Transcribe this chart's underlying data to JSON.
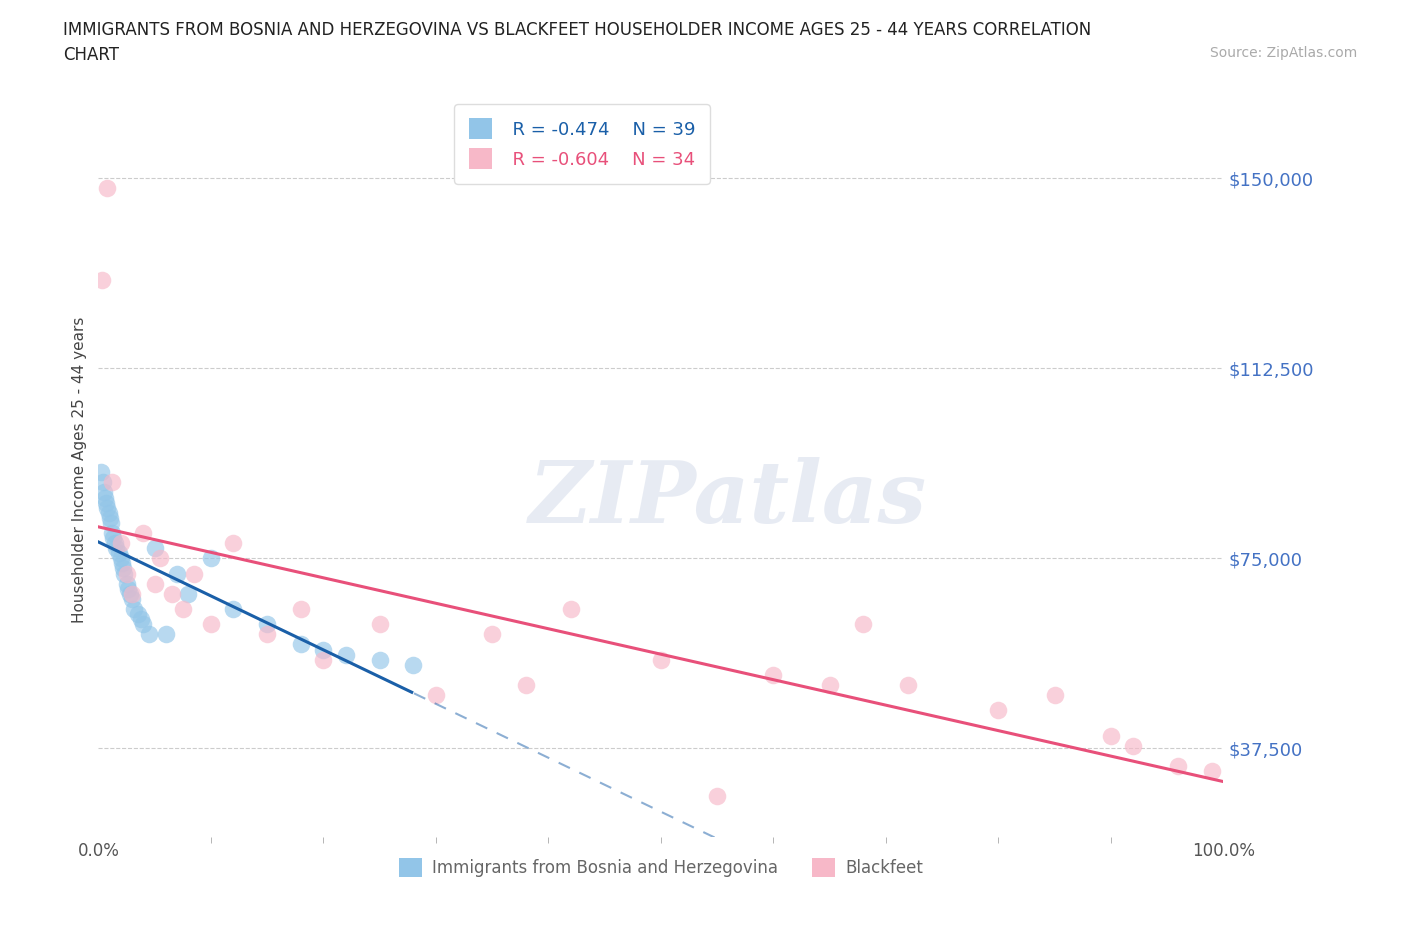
{
  "title_line1": "IMMIGRANTS FROM BOSNIA AND HERZEGOVINA VS BLACKFEET HOUSEHOLDER INCOME AGES 25 - 44 YEARS CORRELATION",
  "title_line2": "CHART",
  "source": "Source: ZipAtlas.com",
  "ylabel": "Householder Income Ages 25 - 44 years",
  "xmin": 0.0,
  "xmax": 100.0,
  "ymin": 20000,
  "ymax": 165000,
  "yticks": [
    37500,
    75000,
    112500,
    150000
  ],
  "ytick_labels": [
    "$37,500",
    "$75,000",
    "$112,500",
    "$150,000"
  ],
  "xtick_labels_left": "0.0%",
  "xtick_labels_right": "100.0%",
  "watermark_text": "ZIPatlas",
  "legend_blue_R": "R = -0.474",
  "legend_blue_N": "N = 39",
  "legend_pink_R": "R = -0.604",
  "legend_pink_N": "N = 34",
  "blue_color": "#92c5e8",
  "pink_color": "#f7b8c8",
  "blue_line_color": "#1a5fa8",
  "pink_line_color": "#e8507a",
  "blue_scatter_x": [
    0.2,
    0.4,
    0.5,
    0.6,
    0.7,
    0.8,
    0.9,
    1.0,
    1.1,
    1.2,
    1.3,
    1.5,
    1.6,
    1.8,
    2.0,
    2.1,
    2.2,
    2.3,
    2.5,
    2.6,
    2.8,
    3.0,
    3.2,
    3.5,
    3.8,
    4.0,
    4.5,
    5.0,
    6.0,
    7.0,
    8.0,
    10.0,
    12.0,
    15.0,
    18.0,
    20.0,
    22.0,
    25.0,
    28.0
  ],
  "blue_scatter_y": [
    92000,
    90000,
    88000,
    87000,
    86000,
    85000,
    84000,
    83000,
    82000,
    80000,
    79000,
    78000,
    77000,
    76000,
    75000,
    74000,
    73000,
    72000,
    70000,
    69000,
    68000,
    67000,
    65000,
    64000,
    63000,
    62000,
    60000,
    77000,
    60000,
    72000,
    68000,
    75000,
    65000,
    62000,
    58000,
    57000,
    56000,
    55000,
    54000
  ],
  "pink_scatter_x": [
    0.3,
    0.8,
    1.2,
    2.0,
    2.5,
    3.0,
    4.0,
    5.0,
    5.5,
    6.5,
    7.5,
    8.5,
    10.0,
    12.0,
    15.0,
    18.0,
    20.0,
    25.0,
    30.0,
    35.0,
    38.0,
    42.0,
    50.0,
    55.0,
    60.0,
    65.0,
    68.0,
    72.0,
    80.0,
    85.0,
    90.0,
    92.0,
    96.0,
    99.0
  ],
  "pink_scatter_y": [
    130000,
    148000,
    90000,
    78000,
    72000,
    68000,
    80000,
    70000,
    75000,
    68000,
    65000,
    72000,
    62000,
    78000,
    60000,
    65000,
    55000,
    62000,
    48000,
    60000,
    50000,
    65000,
    55000,
    28000,
    52000,
    50000,
    62000,
    50000,
    45000,
    48000,
    40000,
    38000,
    34000,
    33000
  ],
  "background_color": "#ffffff",
  "grid_color": "#cccccc",
  "label_blue": "Immigrants from Bosnia and Herzegovina",
  "label_pink": "Blackfeet"
}
